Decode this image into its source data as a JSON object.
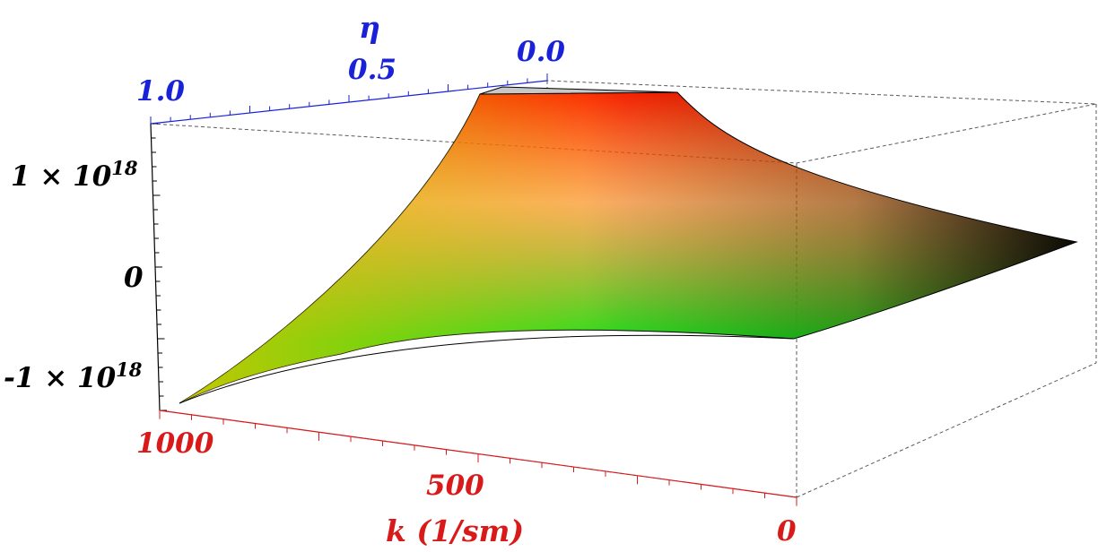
{
  "chart_data": {
    "type": "surface3d",
    "x_axis": {
      "label": "k (1/sm)",
      "ticks": [
        "1000",
        "500",
        "0"
      ],
      "range": [
        0,
        1000
      ],
      "color": "#d91a1a"
    },
    "y_axis": {
      "label": "η",
      "ticks": [
        "1.0",
        "0.5",
        "0.0"
      ],
      "range": [
        0.0,
        1.0
      ],
      "color": "#1a22d9"
    },
    "z_axis": {
      "ticks": [
        "1 × 10",
        "0",
        "-1 × 10"
      ],
      "tick_exponents": [
        "18",
        "",
        "18"
      ],
      "tick_values": [
        1e+18,
        0,
        -1e+18
      ],
      "color": "#000000"
    },
    "surface_samples": [
      {
        "k": 1000,
        "eta": 1.0,
        "z": -1.1e+18
      },
      {
        "k": 1000,
        "eta": 0.0,
        "z": 1.7e+18
      },
      {
        "k": 500,
        "eta": 1.0,
        "z": -4e+17
      },
      {
        "k": 500,
        "eta": 0.0,
        "z": 1.1e+18
      },
      {
        "k": 0,
        "eta": 1.0,
        "z": -5e+17
      },
      {
        "k": 0,
        "eta": 0.0,
        "z": 2.5e+17
      }
    ],
    "colors": {
      "high": "#ff1e00",
      "mid": "#ff7a00",
      "low_left": "#c8c000",
      "low": "#1de21d",
      "dark": "#000000"
    },
    "bounding_box": true
  }
}
